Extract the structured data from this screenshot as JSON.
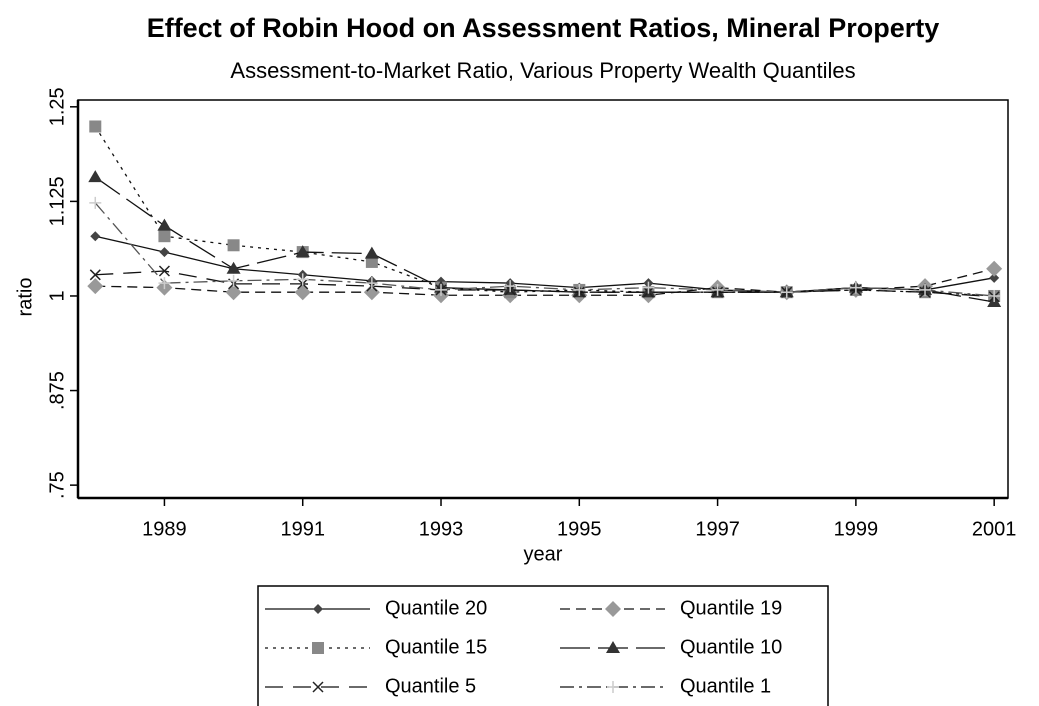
{
  "chart_data": {
    "type": "line",
    "title": "Effect of Robin Hood on Assessment Ratios, Mineral Property",
    "subtitle": "Assessment-to-Market Ratio, Various Property Wealth Quantiles",
    "x_label": "year",
    "y_label": "ratio",
    "x": [
      1988,
      1989,
      1990,
      1991,
      1992,
      1993,
      1994,
      1995,
      1996,
      1997,
      1998,
      1999,
      2000,
      2001
    ],
    "xlim": [
      1987.75,
      2001.2
    ],
    "xticks": [
      1989,
      1991,
      1993,
      1995,
      1997,
      1999,
      2001
    ],
    "ylim": [
      0.733,
      1.259
    ],
    "yticks": [
      {
        "value": 0.75,
        "label": ".75"
      },
      {
        "value": 0.875,
        "label": ".875"
      },
      1,
      1.125,
      1.25
    ],
    "series": [
      {
        "name": "Quantile 20",
        "color": "#444444",
        "marker": "diamond-small",
        "line_style": "solid",
        "values": [
          1.079,
          1.058,
          1.036,
          1.028,
          1.02,
          1.019,
          1.017,
          1.011,
          1.017,
          1.008,
          1.005,
          1.011,
          1.008,
          1.024
        ]
      },
      {
        "name": "Quantile 19",
        "color": "#999999",
        "marker": "diamond",
        "line_style": "dashed",
        "values": [
          1.013,
          1.011,
          1.005,
          1.005,
          1.005,
          1.001,
          1.001,
          1.001,
          1.001,
          1.011,
          1.005,
          1.008,
          1.013,
          1.036
        ]
      },
      {
        "name": "Quantile 15",
        "color": "#888888",
        "marker": "square",
        "line_style": "dotted",
        "values": [
          1.224,
          1.079,
          1.067,
          1.058,
          1.045,
          1.011,
          1.005,
          1.008,
          1.005,
          1.005,
          1.005,
          1.008,
          1.005,
          1.0
        ]
      },
      {
        "name": "Quantile 10",
        "color": "#333333",
        "marker": "triangle",
        "line_style": "longdash",
        "values": [
          1.157,
          1.093,
          1.036,
          1.058,
          1.056,
          1.011,
          1.008,
          1.005,
          1.005,
          1.005,
          1.005,
          1.011,
          1.008,
          0.992
        ]
      },
      {
        "name": "Quantile 5",
        "color": "#222222",
        "marker": "x",
        "line_style": "dash",
        "values": [
          1.028,
          1.033,
          1.016,
          1.016,
          1.013,
          1.008,
          1.008,
          1.005,
          1.005,
          1.005,
          1.005,
          1.008,
          1.005,
          0.999
        ]
      },
      {
        "name": "Quantile 1",
        "color": "#cccccc",
        "marker": "plus",
        "line_style": "dashdot",
        "values": [
          1.123,
          1.017,
          1.02,
          1.022,
          1.017,
          1.008,
          1.013,
          1.008,
          1.011,
          1.008,
          1.005,
          1.011,
          1.008,
          1.0
        ]
      }
    ],
    "legend": "bottom"
  }
}
